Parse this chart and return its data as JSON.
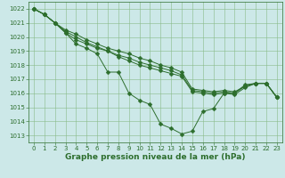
{
  "series": [
    {
      "x": [
        0,
        1,
        2,
        3,
        4,
        5,
        6,
        7,
        8,
        9,
        10,
        11,
        12,
        13,
        14,
        15,
        16,
        17,
        18,
        19,
        20,
        21,
        22,
        23
      ],
      "y": [
        1022.0,
        1021.6,
        1021.0,
        1020.3,
        1019.5,
        1019.2,
        1018.8,
        1017.5,
        1017.5,
        1016.0,
        1015.5,
        1015.2,
        1013.8,
        1013.5,
        1013.1,
        1013.3,
        1014.7,
        1014.9,
        1016.0,
        1016.0,
        1016.6,
        1016.7,
        1016.7,
        1015.7
      ]
    },
    {
      "x": [
        0,
        1,
        2,
        3,
        4,
        5,
        6,
        7,
        8,
        9,
        10,
        11,
        12,
        13,
        14,
        15,
        16,
        17,
        18,
        19,
        20,
        21,
        22,
        23
      ],
      "y": [
        1022.0,
        1021.6,
        1021.0,
        1020.5,
        1020.2,
        1019.8,
        1019.5,
        1019.2,
        1019.0,
        1018.8,
        1018.5,
        1018.3,
        1018.0,
        1017.8,
        1017.5,
        1016.3,
        1016.2,
        1016.1,
        1016.2,
        1016.1,
        1016.5,
        1016.7,
        1016.7,
        1015.7
      ]
    },
    {
      "x": [
        0,
        1,
        2,
        3,
        4,
        5,
        6,
        7,
        8,
        9,
        10,
        11,
        12,
        13,
        14,
        15,
        16,
        17,
        18,
        19,
        20,
        21,
        22,
        23
      ],
      "y": [
        1022.0,
        1021.6,
        1021.0,
        1020.4,
        1020.0,
        1019.6,
        1019.3,
        1019.0,
        1018.7,
        1018.5,
        1018.2,
        1018.0,
        1017.8,
        1017.6,
        1017.3,
        1016.2,
        1016.1,
        1016.0,
        1016.1,
        1016.0,
        1016.5,
        1016.7,
        1016.7,
        1015.7
      ]
    },
    {
      "x": [
        0,
        1,
        2,
        3,
        4,
        5,
        6,
        7,
        8,
        9,
        10,
        11,
        12,
        13,
        14,
        15,
        16,
        17,
        18,
        19,
        20,
        21,
        22,
        23
      ],
      "y": [
        1022.0,
        1021.6,
        1021.0,
        1020.3,
        1019.8,
        1019.5,
        1019.2,
        1019.0,
        1018.6,
        1018.3,
        1018.0,
        1017.8,
        1017.6,
        1017.4,
        1017.2,
        1016.1,
        1016.0,
        1015.9,
        1016.0,
        1015.9,
        1016.4,
        1016.7,
        1016.7,
        1015.7
      ]
    }
  ],
  "line_color": "#2d6e2d",
  "marker_color": "#2d6e2d",
  "bg_color": "#cce8e8",
  "grid_color": "#88bb88",
  "xlabel": "Graphe pression niveau de la mer (hPa)",
  "xlabel_color": "#2d6e2d",
  "ylim": [
    1012.5,
    1022.5
  ],
  "xlim": [
    -0.5,
    23.5
  ],
  "yticks": [
    1013,
    1014,
    1015,
    1016,
    1017,
    1018,
    1019,
    1020,
    1021,
    1022
  ],
  "xticks": [
    0,
    1,
    2,
    3,
    4,
    5,
    6,
    7,
    8,
    9,
    10,
    11,
    12,
    13,
    14,
    15,
    16,
    17,
    18,
    19,
    20,
    21,
    22,
    23
  ],
  "tick_color": "#2d6e2d",
  "tick_fontsize": 5.0,
  "xlabel_fontsize": 6.5,
  "marker_size": 2.5,
  "linewidth": 0.7
}
